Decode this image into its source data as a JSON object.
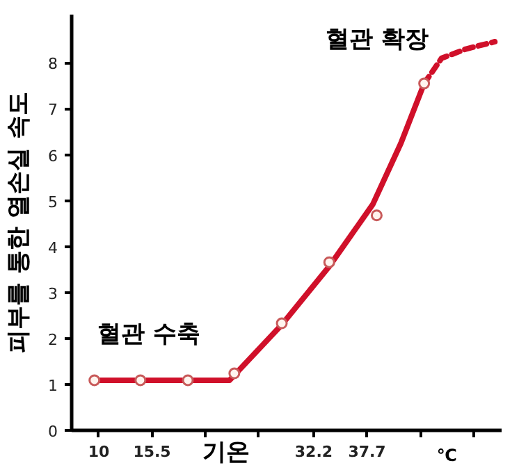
{
  "chart_data": {
    "type": "line",
    "xlabel": "기온",
    "ylabel": "피부를 통한 열손실 속도",
    "xlim": [
      7.2,
      51.6
    ],
    "ylim": [
      0,
      9.05
    ],
    "xticks": [
      {
        "value": 10,
        "label": "10"
      },
      {
        "value": 15.5,
        "label": "15.5"
      },
      {
        "value": 21,
        "label": null
      },
      {
        "value": 26.5,
        "label": null
      },
      {
        "value": 32.2,
        "label": "32.2"
      },
      {
        "value": 37.7,
        "label": "37.7"
      },
      {
        "value": 43.2,
        "label": null
      },
      {
        "value": 48.7,
        "label": null
      }
    ],
    "yticks": [
      0,
      1,
      2,
      3,
      4,
      5,
      6,
      7,
      8
    ],
    "grid": false,
    "series": [
      {
        "line_style": "solid",
        "marker": "none",
        "color": "#d0102a",
        "x": [
          9.55,
          23.5,
          28.9,
          33.8,
          38.3,
          41.2,
          43.6
        ],
        "values": [
          1.09,
          1.09,
          2.3,
          3.57,
          4.92,
          6.25,
          7.55
        ]
      },
      {
        "line_style": "dashed",
        "marker": "none",
        "color": "#d0102a",
        "x": [
          43.6,
          45.4,
          47.9,
          50.9
        ],
        "values": [
          7.55,
          8.1,
          8.3,
          8.46
        ]
      },
      {
        "type": "scatter",
        "marker": "circle",
        "color": "#c85a5a",
        "x": [
          9.55,
          14.3,
          19.2,
          24.0,
          28.9,
          33.8,
          38.7,
          43.6
        ],
        "values": [
          1.09,
          1.09,
          1.09,
          1.24,
          2.33,
          3.66,
          4.68,
          7.55
        ]
      }
    ],
    "annotations": [
      "혈관 수축",
      "혈관 확장",
      "℃"
    ]
  }
}
